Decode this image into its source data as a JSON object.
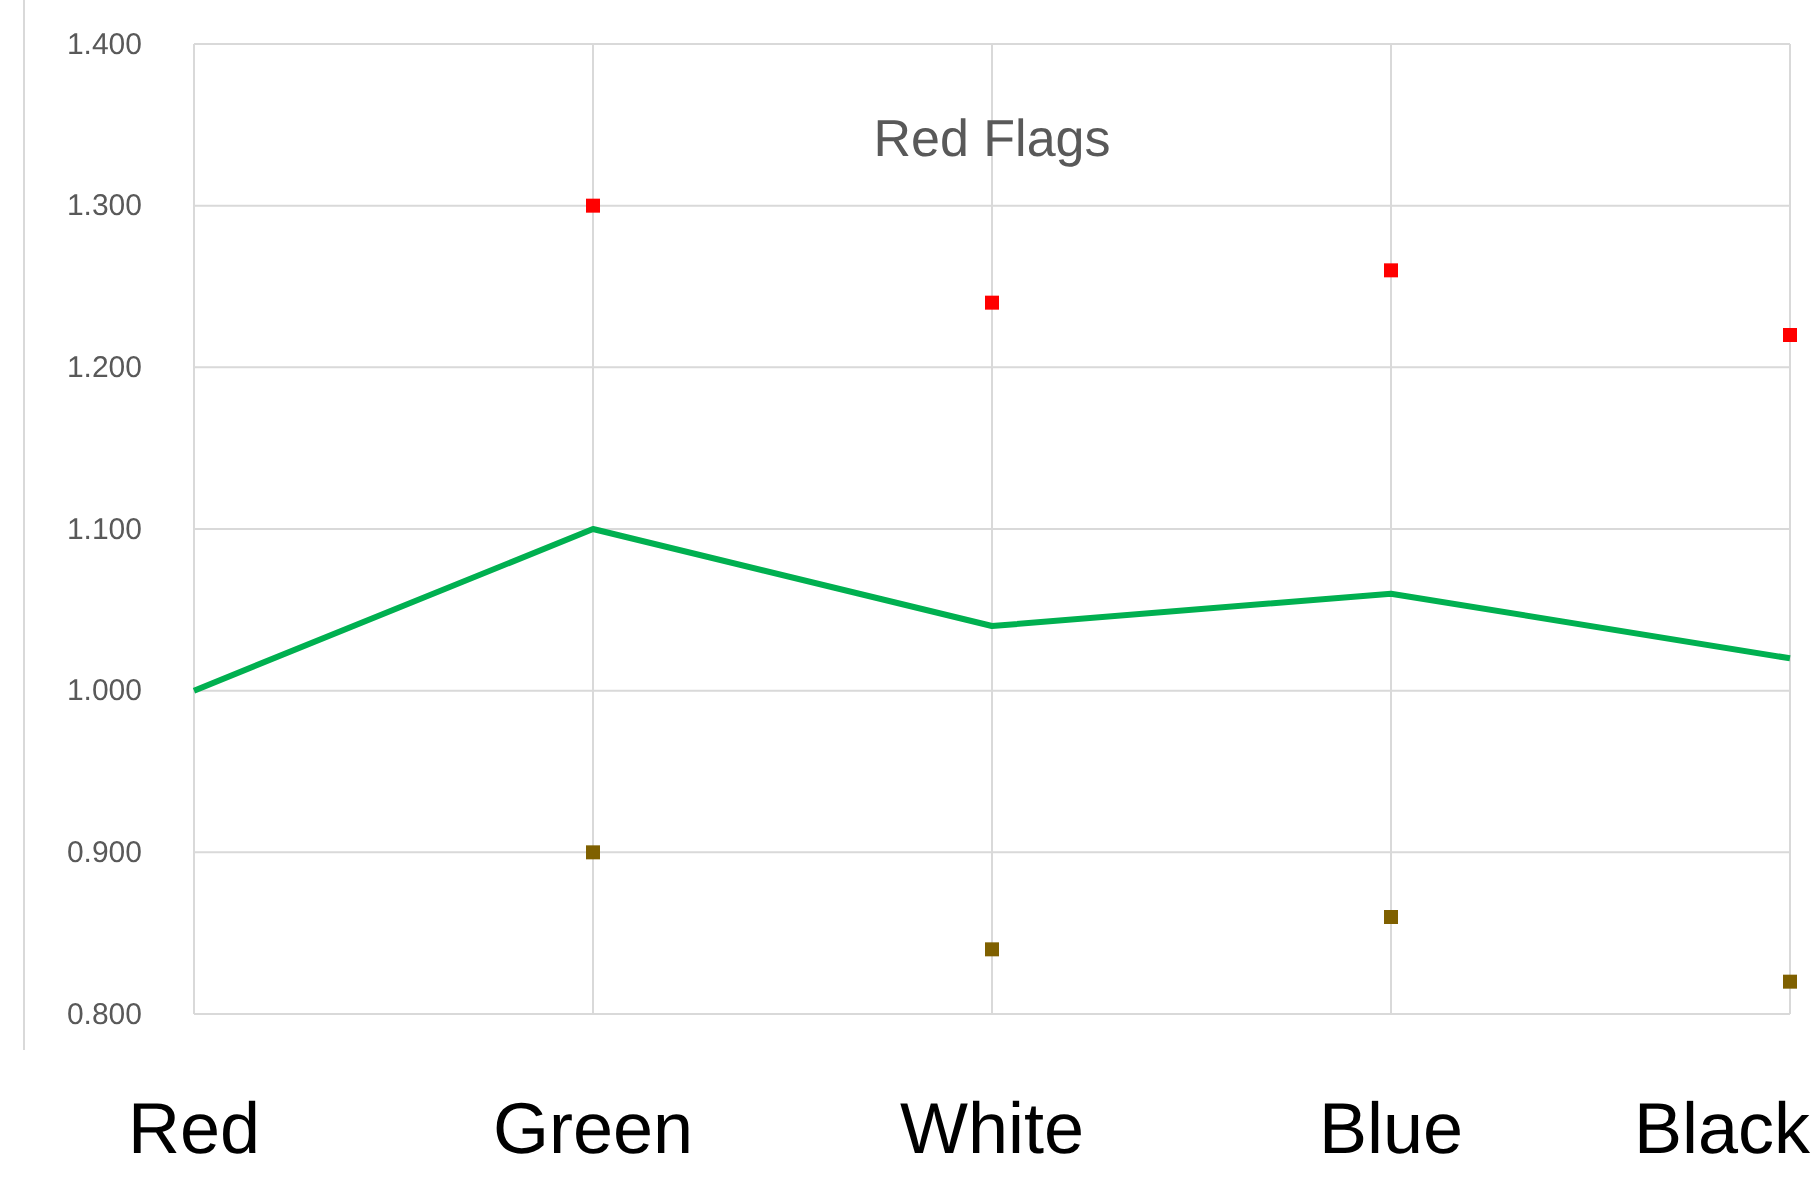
{
  "chart_data": {
    "type": "line",
    "title": "Red Flags",
    "categories": [
      "Red",
      "Green",
      "White",
      "Blue",
      "Black"
    ],
    "series": [
      {
        "type": "line",
        "color": "#00b050",
        "values": [
          1.0,
          1.1,
          1.04,
          1.06,
          1.02
        ]
      },
      {
        "type": "scatter",
        "marker": "square",
        "color": "#ff0000",
        "x": [
          "Green",
          "White",
          "Blue",
          "Black"
        ],
        "values": [
          1.3,
          1.24,
          1.26,
          1.22
        ]
      },
      {
        "type": "scatter",
        "marker": "square",
        "color": "#7f6000",
        "x": [
          "Green",
          "White",
          "Blue",
          "Black"
        ],
        "values": [
          0.9,
          0.84,
          0.86,
          0.82
        ]
      }
    ],
    "ylim": [
      0.8,
      1.4
    ],
    "yticks": [
      {
        "value": 0.8,
        "label": "0.800"
      },
      {
        "value": 0.9,
        "label": "0.900"
      },
      {
        "value": 1.0,
        "label": "1.000"
      },
      {
        "value": 1.1,
        "label": "1.100"
      },
      {
        "value": 1.2,
        "label": "1.200"
      },
      {
        "value": 1.3,
        "label": "1.300"
      },
      {
        "value": 1.4,
        "label": "1.400"
      }
    ],
    "grid": true
  }
}
